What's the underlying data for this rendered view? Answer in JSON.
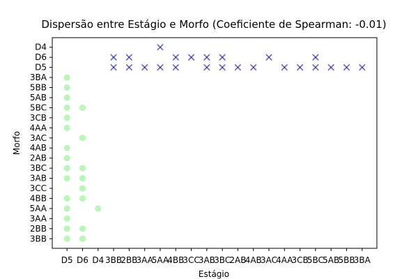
{
  "chart_data": {
    "type": "scatter",
    "title": "Dispersão entre Estágio e Morfo (Coeficiente de Spearman: -0.01)",
    "xlabel": "Estágio",
    "ylabel": "Morfo",
    "x_categories": [
      "D5",
      "D6",
      "D4",
      "3BB",
      "2BB",
      "3AA",
      "5AA",
      "4BB",
      "3CC",
      "3AB",
      "3BC",
      "2AB",
      "4AB",
      "3AC",
      "4AA",
      "3CB",
      "5BC",
      "5AB",
      "5BB",
      "3BA"
    ],
    "y_categories": [
      "3BB",
      "2BB",
      "3AA",
      "5AA",
      "4BB",
      "3CC",
      "3AB",
      "3BC",
      "2AB",
      "4AB",
      "3AC",
      "4AA",
      "3CB",
      "5BC",
      "5AB",
      "5BB",
      "3BA",
      "D5",
      "D6",
      "D4"
    ],
    "grid": false,
    "series": [
      {
        "marker": "circle",
        "color": "#90ee90",
        "points": [
          [
            "D5",
            "3BA"
          ],
          [
            "D5",
            "5BB"
          ],
          [
            "D5",
            "5AB"
          ],
          [
            "D5",
            "5BC"
          ],
          [
            "D5",
            "3CB"
          ],
          [
            "D5",
            "4AA"
          ],
          [
            "D5",
            "4AB"
          ],
          [
            "D5",
            "2AB"
          ],
          [
            "D5",
            "3BC"
          ],
          [
            "D5",
            "3AB"
          ],
          [
            "D5",
            "4BB"
          ],
          [
            "D5",
            "5AA"
          ],
          [
            "D5",
            "3AA"
          ],
          [
            "D5",
            "2BB"
          ],
          [
            "D5",
            "3BB"
          ],
          [
            "D6",
            "5BC"
          ],
          [
            "D6",
            "3AC"
          ],
          [
            "D6",
            "3BC"
          ],
          [
            "D6",
            "3AB"
          ],
          [
            "D6",
            "3CC"
          ],
          [
            "D6",
            "4BB"
          ],
          [
            "D6",
            "2BB"
          ],
          [
            "D6",
            "3BB"
          ],
          [
            "D4",
            "5AA"
          ]
        ]
      },
      {
        "marker": "x",
        "color": "#00008b",
        "points": [
          [
            "3BB",
            "D6"
          ],
          [
            "3BB",
            "D5"
          ],
          [
            "2BB",
            "D6"
          ],
          [
            "2BB",
            "D5"
          ],
          [
            "3AA",
            "D5"
          ],
          [
            "5AA",
            "D4"
          ],
          [
            "5AA",
            "D5"
          ],
          [
            "4BB",
            "D6"
          ],
          [
            "4BB",
            "D5"
          ],
          [
            "3CC",
            "D6"
          ],
          [
            "3AB",
            "D6"
          ],
          [
            "3AB",
            "D5"
          ],
          [
            "3BC",
            "D6"
          ],
          [
            "3BC",
            "D5"
          ],
          [
            "2AB",
            "D5"
          ],
          [
            "4AB",
            "D5"
          ],
          [
            "3AC",
            "D6"
          ],
          [
            "4AA",
            "D5"
          ],
          [
            "3CB",
            "D5"
          ],
          [
            "5BC",
            "D6"
          ],
          [
            "5BC",
            "D5"
          ],
          [
            "5AB",
            "D5"
          ],
          [
            "5BB",
            "D5"
          ],
          [
            "3BA",
            "D5"
          ]
        ]
      }
    ]
  }
}
